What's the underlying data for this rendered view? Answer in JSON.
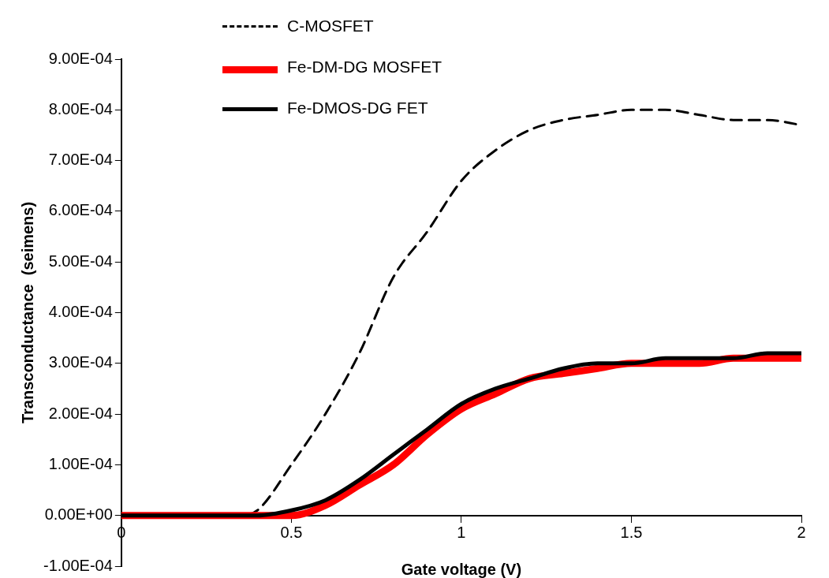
{
  "chart_data": {
    "type": "line",
    "xlabel": "Gate voltage (V)",
    "ylabel": "Transconductance  (seimens)",
    "xlim": [
      0,
      2
    ],
    "xticks": [
      0,
      0.5,
      1,
      1.5,
      2
    ],
    "ylim": [
      -0.0001,
      0.0009
    ],
    "yticks": [
      {
        "value": -0.0001,
        "label": "-1.00E-04"
      },
      {
        "value": 0,
        "label": "0.00E+00"
      },
      {
        "value": 0.0001,
        "label": "1.00E-04"
      },
      {
        "value": 0.0002,
        "label": "2.00E-04"
      },
      {
        "value": 0.0003,
        "label": "3.00E-04"
      },
      {
        "value": 0.0004,
        "label": "4.00E-04"
      },
      {
        "value": 0.0005,
        "label": "5.00E-04"
      },
      {
        "value": 0.0006,
        "label": "6.00E-04"
      },
      {
        "value": 0.0007,
        "label": "7.00E-04"
      },
      {
        "value": 0.0008,
        "label": "8.00E-04"
      },
      {
        "value": 0.0009,
        "label": "9.00E-04"
      }
    ],
    "grid": false,
    "legend": "top left",
    "marker": "none",
    "x": [
      0,
      0.1,
      0.2,
      0.3,
      0.35,
      0.4,
      0.5,
      0.6,
      0.7,
      0.8,
      0.9,
      1.0,
      1.1,
      1.2,
      1.3,
      1.4,
      1.5,
      1.6,
      1.7,
      1.8,
      1.9,
      2.0
    ],
    "series": [
      {
        "name": "C-MOSFET",
        "color": "#000000",
        "line_style": "dashed",
        "values": [
          0,
          0,
          0,
          0,
          0,
          1e-05,
          0.0001,
          0.0002,
          0.00032,
          0.00047,
          0.00056,
          0.00066,
          0.00072,
          0.00076,
          0.00078,
          0.00079,
          0.0008,
          0.0008,
          0.00079,
          0.00078,
          0.00078,
          0.00077
        ]
      },
      {
        "name": "Fe-DM-DG MOSFET",
        "color": "#ff0000",
        "line_style": "solid",
        "values": [
          0,
          0,
          0,
          0,
          0,
          0,
          0,
          2e-05,
          6e-05,
          0.0001,
          0.00016,
          0.00021,
          0.00024,
          0.00027,
          0.00028,
          0.00029,
          0.0003,
          0.0003,
          0.0003,
          0.00031,
          0.00031,
          0.00031
        ]
      },
      {
        "name": "Fe-DMOS-DG FET",
        "color": "#000000",
        "line_style": "solid",
        "values": [
          0,
          0,
          0,
          0,
          0,
          0,
          1e-05,
          3e-05,
          7e-05,
          0.00012,
          0.00017,
          0.00022,
          0.00025,
          0.00027,
          0.00029,
          0.0003,
          0.0003,
          0.00031,
          0.00031,
          0.00031,
          0.00032,
          0.00032
        ]
      }
    ]
  }
}
